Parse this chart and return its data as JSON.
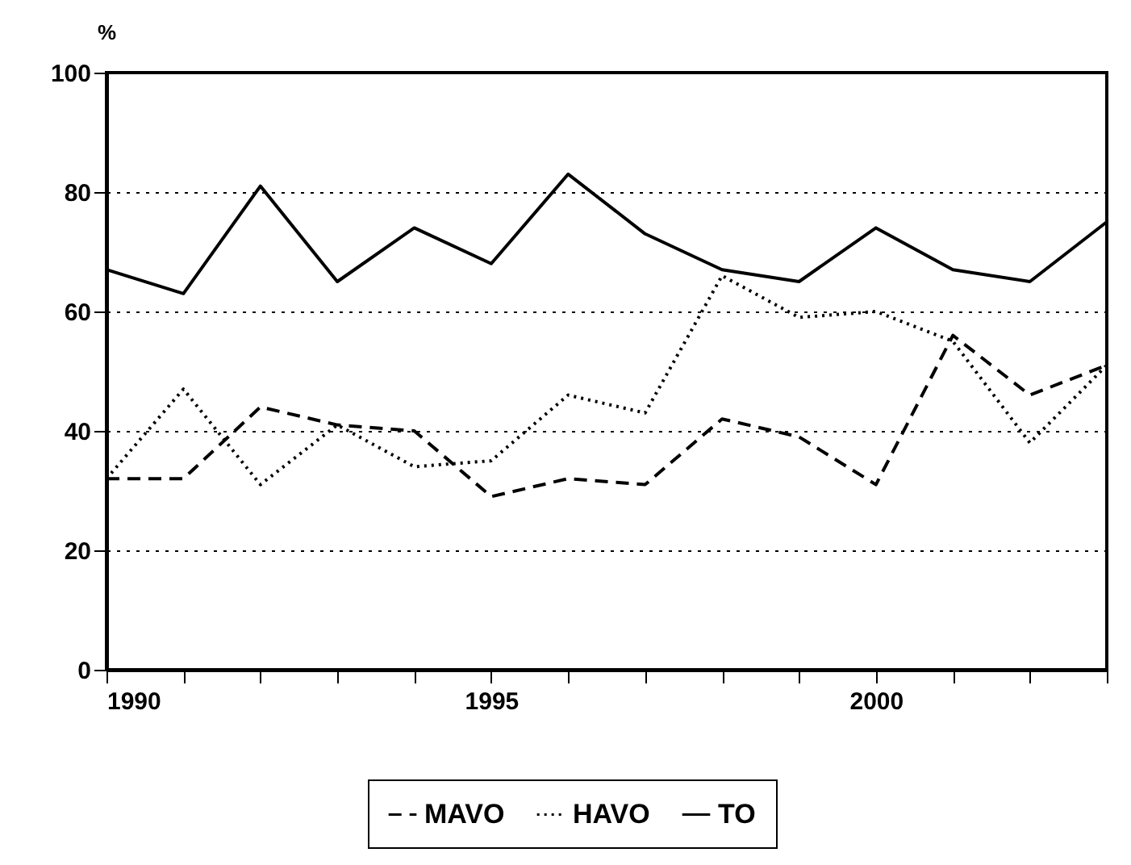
{
  "chart_data": {
    "type": "line",
    "ylabel": "%",
    "x": [
      1990,
      1991,
      1992,
      1993,
      1994,
      1995,
      1996,
      1997,
      1998,
      1999,
      2000,
      2001,
      2002,
      2003
    ],
    "series": [
      {
        "name": "MAVO",
        "color": "#000000",
        "line_style": "dashed",
        "values": [
          32,
          32,
          44,
          41,
          40,
          29,
          32,
          31,
          42,
          39,
          31,
          56,
          46,
          51
        ]
      },
      {
        "name": "HAVO",
        "color": "#000000",
        "line_style": "dotted",
        "values": [
          32,
          47,
          31,
          41,
          34,
          35,
          46,
          43,
          66,
          59,
          60,
          55,
          38,
          51
        ]
      },
      {
        "name": "TO",
        "color": "#000000",
        "line_style": "solid",
        "values": [
          67,
          63,
          81,
          65,
          74,
          68,
          83,
          73,
          67,
          65,
          74,
          67,
          65,
          75
        ]
      }
    ],
    "xlim": [
      1990,
      2003
    ],
    "xticks": [
      1990,
      {
        "value": 1991,
        "label": null
      },
      {
        "value": 1992,
        "label": null
      },
      {
        "value": 1993,
        "label": null
      },
      {
        "value": 1994,
        "label": null
      },
      1995,
      {
        "value": 1996,
        "label": null
      },
      {
        "value": 1997,
        "label": null
      },
      {
        "value": 1998,
        "label": null
      },
      {
        "value": 1999,
        "label": null
      },
      2000,
      {
        "value": 2001,
        "label": null
      },
      {
        "value": 2002,
        "label": null
      },
      {
        "value": 2003,
        "label": null
      }
    ],
    "ylim": [
      0,
      100
    ],
    "yticks": [
      0,
      20,
      40,
      60,
      80,
      100
    ],
    "grid": "y",
    "legend": "bottom"
  }
}
